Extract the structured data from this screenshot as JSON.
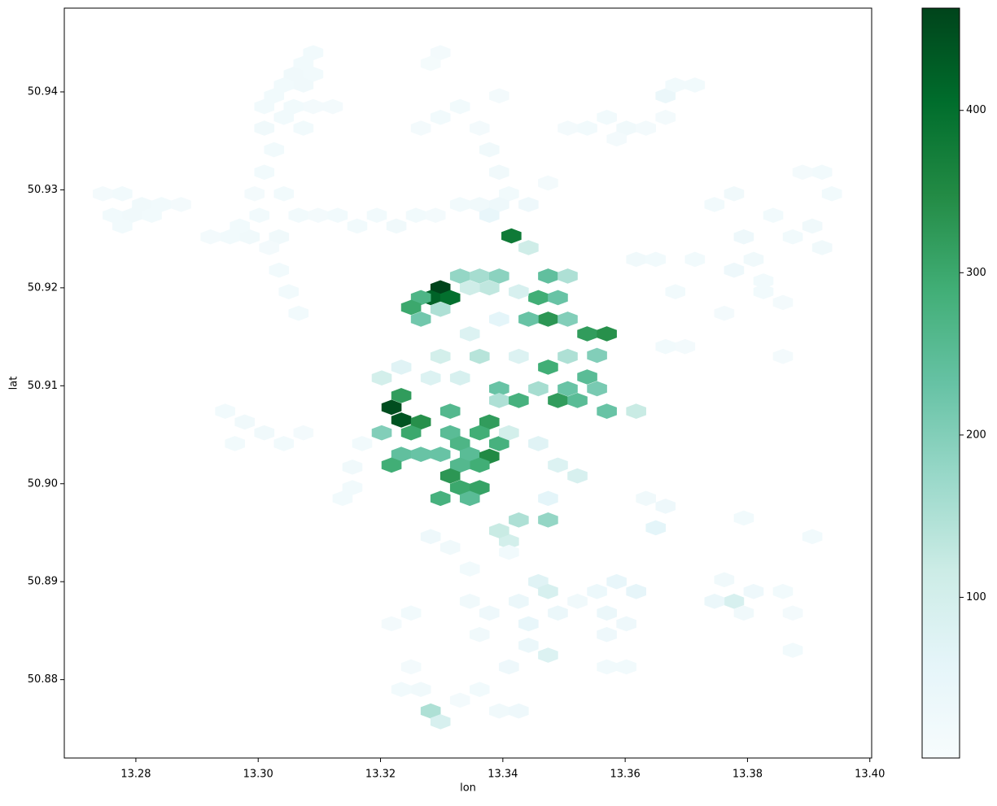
{
  "chart_data": {
    "type": "hexbin",
    "xlabel": "lon",
    "ylabel": "lat",
    "x": [
      13.309,
      13.3074,
      13.3058,
      13.309,
      13.3042,
      13.3074,
      13.3026,
      13.3058,
      13.301,
      13.3042,
      13.309,
      13.3122,
      13.301,
      13.3074,
      13.3026,
      13.301,
      13.2994,
      13.3042,
      13.3298,
      13.3282,
      13.3266,
      13.3298,
      13.333,
      13.3362,
      13.3378,
      13.3394,
      13.341,
      13.3394,
      13.3442,
      13.333,
      13.3362,
      13.3394,
      13.3378,
      13.3474,
      13.3506,
      13.3538,
      13.357,
      13.3602,
      13.3634,
      13.3666,
      13.3666,
      13.3682,
      13.3714,
      13.3586,
      13.2746,
      13.2778,
      13.281,
      13.2842,
      13.2874,
      13.2762,
      13.2794,
      13.2826,
      13.2778,
      13.2922,
      13.2954,
      13.2986,
      13.297,
      13.3002,
      13.3034,
      13.3066,
      13.3098,
      13.313,
      13.3162,
      13.3194,
      13.3226,
      13.3258,
      13.329,
      13.3034,
      13.305,
      13.3066,
      13.3018,
      13.3714,
      13.3746,
      13.3778,
      13.3794,
      13.381,
      13.3778,
      13.3826,
      13.3842,
      13.3874,
      13.3906,
      13.3922,
      13.3938,
      13.3922,
      13.389,
      13.3826,
      13.3762,
      13.3858,
      13.3618,
      13.365,
      13.3682,
      13.3698,
      13.3666,
      13.3858,
      13.2946,
      13.2978,
      13.301,
      13.2962,
      13.3042,
      13.3074,
      13.317,
      13.3154,
      13.3154,
      13.3138,
      13.3298,
      13.3282,
      13.3314,
      13.3266,
      13.325,
      13.3298,
      13.3266,
      13.333,
      13.3362,
      13.3394,
      13.3378,
      13.3346,
      13.3414,
      13.3442,
      13.3458,
      13.349,
      13.3474,
      13.3506,
      13.3442,
      13.3474,
      13.3506,
      13.3538,
      13.357,
      13.3554,
      13.3538,
      13.349,
      13.3522,
      13.3474,
      13.3458,
      13.3506,
      13.3554,
      13.357,
      13.3506,
      13.3618,
      13.3394,
      13.3218,
      13.3234,
      13.3266,
      13.3234,
      13.325,
      13.3202,
      13.3234,
      13.3266,
      13.3218,
      13.3314,
      13.3314,
      13.333,
      13.3298,
      13.3378,
      13.3362,
      13.3394,
      13.3346,
      13.3378,
      13.3362,
      13.333,
      13.3314,
      13.333,
      13.3362,
      13.3346,
      13.3298,
      13.3394,
      13.3426,
      13.341,
      13.3458,
      13.349,
      13.3522,
      13.3474,
      13.3426,
      13.3474,
      13.341,
      13.3394,
      13.3298,
      13.333,
      13.3362,
      13.3426,
      13.3234,
      13.3282,
      13.3202,
      13.3394,
      13.3426,
      13.3346,
      13.3282,
      13.3298,
      13.3266,
      13.3234,
      13.325,
      13.333,
      13.3362,
      13.3394,
      13.3426,
      13.341,
      13.3442,
      13.3474,
      13.3442,
      13.3426,
      13.3458,
      13.3474,
      13.349,
      13.3522,
      13.3554,
      13.357,
      13.3586,
      13.3618,
      13.3602,
      13.357,
      13.357,
      13.3602,
      13.365,
      13.3666,
      13.3634,
      13.3282,
      13.3314,
      13.3346,
      13.3346,
      13.3378,
      13.3362,
      13.325,
      13.3218,
      13.341,
      13.3778,
      13.3746,
      13.3762,
      13.381,
      13.3794,
      13.3858,
      13.3874,
      13.3906,
      13.3874,
      13.3794
    ],
    "y": [
      50.944,
      50.9429,
      50.9418,
      50.9418,
      50.9407,
      50.9407,
      50.9396,
      50.9385,
      50.9385,
      50.9374,
      50.9385,
      50.9385,
      50.9363,
      50.9363,
      50.9341,
      50.9318,
      50.9296,
      50.9296,
      50.944,
      50.9429,
      50.9363,
      50.9374,
      50.9385,
      50.9363,
      50.9341,
      50.9318,
      50.9296,
      50.9396,
      50.9285,
      50.9285,
      50.9285,
      50.9285,
      50.9274,
      50.9307,
      50.9363,
      50.9363,
      50.9374,
      50.9363,
      50.9363,
      50.9374,
      50.9396,
      50.9407,
      50.9407,
      50.9352,
      50.9296,
      50.9296,
      50.9285,
      50.9285,
      50.9285,
      50.9274,
      50.9274,
      50.9274,
      50.9263,
      50.9252,
      50.9252,
      50.9252,
      50.9263,
      50.9274,
      50.9252,
      50.9274,
      50.9274,
      50.9274,
      50.9263,
      50.9274,
      50.9263,
      50.9274,
      50.9274,
      50.9218,
      50.9196,
      50.9174,
      50.9241,
      50.9229,
      50.9285,
      50.9296,
      50.9252,
      50.9229,
      50.9218,
      50.9207,
      50.9274,
      50.9252,
      50.9263,
      50.9241,
      50.9296,
      50.9318,
      50.9318,
      50.9196,
      50.9174,
      50.9185,
      50.9229,
      50.9229,
      50.9196,
      50.914,
      50.914,
      50.913,
      50.9074,
      50.9063,
      50.9052,
      50.9041,
      50.9041,
      50.9052,
      50.9041,
      50.9017,
      50.8996,
      50.8985,
      50.92,
      50.919,
      50.919,
      50.919,
      50.918,
      50.9178,
      50.9168,
      50.9212,
      50.9212,
      50.9212,
      50.92,
      50.92,
      50.9253,
      50.9241,
      50.919,
      50.919,
      50.9168,
      50.9168,
      50.9168,
      50.9212,
      50.9212,
      50.9153,
      50.9153,
      50.9131,
      50.9109,
      50.9085,
      50.9085,
      50.9119,
      50.9097,
      50.9097,
      50.9097,
      50.9074,
      50.913,
      50.9074,
      50.9097,
      50.9078,
      50.9065,
      50.9063,
      50.909,
      50.9052,
      50.9052,
      50.903,
      50.903,
      50.9019,
      50.9074,
      50.9052,
      50.9041,
      50.903,
      50.9063,
      50.9052,
      50.9041,
      50.903,
      50.9028,
      50.9019,
      50.9019,
      50.9008,
      50.8996,
      50.8996,
      50.8985,
      50.8985,
      50.9085,
      50.9085,
      50.9052,
      50.9041,
      50.9019,
      50.9008,
      50.8985,
      50.8963,
      50.8963,
      50.8941,
      50.8952,
      50.913,
      50.9108,
      50.913,
      50.913,
      50.9119,
      50.9108,
      50.9108,
      50.9168,
      50.9196,
      50.9153,
      50.8768,
      50.8757,
      50.879,
      50.879,
      50.8813,
      50.8779,
      50.879,
      50.8768,
      50.8768,
      50.8813,
      50.8835,
      50.8825,
      50.8857,
      50.888,
      50.89,
      50.889,
      50.8868,
      50.888,
      50.889,
      50.8868,
      50.89,
      50.889,
      50.8857,
      50.8846,
      50.8813,
      50.8813,
      50.8955,
      50.8977,
      50.8985,
      50.8946,
      50.8935,
      50.8913,
      50.888,
      50.8868,
      50.8846,
      50.8868,
      50.8857,
      50.893,
      50.888,
      50.888,
      50.8902,
      50.889,
      50.8868,
      50.889,
      50.8868,
      50.8946,
      50.883,
      50.8965
    ],
    "values": [
      20,
      20,
      25,
      20,
      20,
      25,
      20,
      20,
      20,
      20,
      15,
      15,
      25,
      20,
      20,
      20,
      15,
      20,
      15,
      10,
      15,
      20,
      20,
      15,
      25,
      25,
      20,
      15,
      30,
      20,
      25,
      30,
      50,
      15,
      15,
      20,
      20,
      25,
      15,
      15,
      40,
      20,
      20,
      15,
      15,
      20,
      25,
      20,
      15,
      20,
      25,
      20,
      20,
      15,
      20,
      25,
      20,
      20,
      25,
      20,
      15,
      20,
      20,
      20,
      25,
      20,
      15,
      20,
      20,
      20,
      15,
      20,
      20,
      25,
      30,
      25,
      30,
      20,
      20,
      20,
      25,
      25,
      20,
      20,
      15,
      20,
      15,
      15,
      25,
      20,
      20,
      15,
      20,
      15,
      20,
      25,
      25,
      20,
      20,
      15,
      20,
      25,
      20,
      20,
      463,
      420,
      400,
      270,
      300,
      150,
      220,
      180,
      160,
      190,
      130,
      110,
      380,
      110,
      290,
      230,
      330,
      200,
      230,
      240,
      150,
      320,
      340,
      200,
      250,
      320,
      250,
      290,
      160,
      230,
      210,
      230,
      150,
      120,
      230,
      450,
      440,
      340,
      320,
      300,
      200,
      240,
      230,
      290,
      260,
      250,
      270,
      230,
      320,
      290,
      280,
      250,
      350,
      290,
      260,
      330,
      300,
      310,
      250,
      280,
      150,
      280,
      100,
      70,
      80,
      90,
      60,
      150,
      180,
      100,
      120,
      100,
      90,
      140,
      80,
      70,
      80,
      100,
      60,
      90,
      80,
      150,
      90,
      25,
      20,
      15,
      15,
      20,
      25,
      30,
      30,
      40,
      80,
      50,
      40,
      70,
      90,
      40,
      25,
      35,
      40,
      50,
      55,
      30,
      30,
      20,
      20,
      60,
      30,
      25,
      30,
      25,
      20,
      25,
      30,
      25,
      20,
      15,
      20,
      90,
      40,
      25,
      30,
      25,
      20,
      15,
      20,
      20,
      20
    ],
    "xlim": [
      13.2683,
      13.4003
    ],
    "ylim": [
      50.872,
      50.94855
    ],
    "clim": [
      1,
      463
    ],
    "xticks": [
      {
        "value": 13.28,
        "label": "13.28"
      },
      {
        "value": 13.3,
        "label": "13.30"
      },
      {
        "value": 13.32,
        "label": "13.32"
      },
      {
        "value": 13.34,
        "label": "13.34"
      },
      {
        "value": 13.36,
        "label": "13.36"
      },
      {
        "value": 13.38,
        "label": "13.38"
      },
      {
        "value": 13.4,
        "label": "13.40"
      }
    ],
    "yticks": [
      {
        "value": 50.88,
        "label": "50.88"
      },
      {
        "value": 50.89,
        "label": "50.89"
      },
      {
        "value": 50.9,
        "label": "50.90"
      },
      {
        "value": 50.91,
        "label": "50.91"
      },
      {
        "value": 50.92,
        "label": "50.92"
      },
      {
        "value": 50.93,
        "label": "50.93"
      },
      {
        "value": 50.94,
        "label": "50.94"
      }
    ],
    "cticks": [
      100,
      200,
      300,
      400
    ],
    "colormap": [
      "#f7fcfd",
      "#e5f5f9",
      "#ccece6",
      "#99d8c9",
      "#66c2a4",
      "#41ae76",
      "#238b45",
      "#006d2c",
      "#00441b"
    ]
  }
}
